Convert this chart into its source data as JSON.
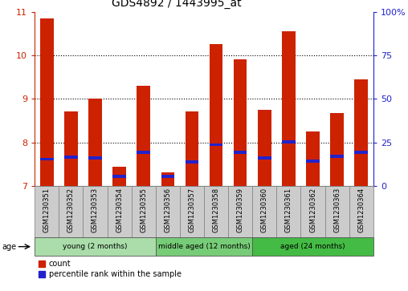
{
  "title": "GDS4892 / 1443995_at",
  "samples": [
    "GSM1230351",
    "GSM1230352",
    "GSM1230353",
    "GSM1230354",
    "GSM1230355",
    "GSM1230356",
    "GSM1230357",
    "GSM1230358",
    "GSM1230359",
    "GSM1230360",
    "GSM1230361",
    "GSM1230362",
    "GSM1230363",
    "GSM1230364"
  ],
  "counts": [
    10.85,
    8.72,
    9.0,
    7.45,
    9.3,
    7.32,
    8.72,
    10.25,
    9.9,
    8.75,
    10.55,
    8.25,
    8.68,
    9.45
  ],
  "percentile_ranks": [
    7.62,
    7.66,
    7.65,
    7.22,
    7.78,
    7.22,
    7.55,
    7.95,
    7.78,
    7.65,
    8.02,
    7.57,
    7.68,
    7.78
  ],
  "groups": [
    {
      "label": "young (2 months)",
      "start": 0,
      "end": 5,
      "color": "#aaddaa"
    },
    {
      "label": "middle aged (12 months)",
      "start": 5,
      "end": 9,
      "color": "#77cc77"
    },
    {
      "label": "aged (24 months)",
      "start": 9,
      "end": 14,
      "color": "#44bb44"
    }
  ],
  "ylim": [
    7,
    11
  ],
  "yticks_left": [
    7,
    8,
    9,
    10,
    11
  ],
  "right_yticks_pct": [
    0,
    25,
    50,
    75,
    100
  ],
  "bar_color": "#cc2200",
  "blue_color": "#2222cc",
  "bar_width": 0.55,
  "background_color": "#ffffff",
  "title_fontsize": 10,
  "left_tick_color": "#cc2200",
  "right_tick_color": "#2222cc",
  "sample_box_color": "#cccccc",
  "legend_label_count": "count",
  "legend_label_pct": "percentile rank within the sample",
  "age_label": "age"
}
